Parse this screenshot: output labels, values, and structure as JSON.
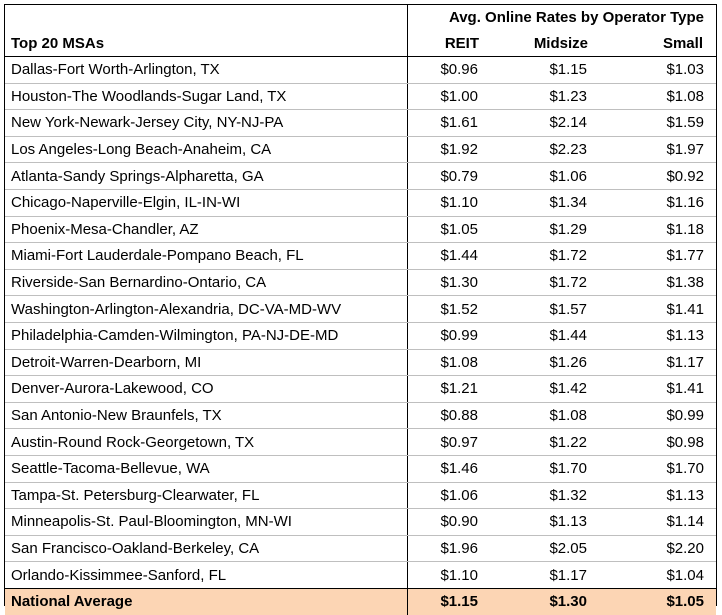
{
  "table": {
    "group_header": "Avg. Online Rates by Operator Type",
    "columns": {
      "name": "Top 20 MSAs",
      "reit": "REIT",
      "midsize": "Midsize",
      "small": "Small"
    },
    "rows": [
      {
        "msa": "Dallas-Fort Worth-Arlington, TX",
        "reit": "$0.96",
        "midsize": "$1.15",
        "small": "$1.03"
      },
      {
        "msa": "Houston-The Woodlands-Sugar Land, TX",
        "reit": "$1.00",
        "midsize": "$1.23",
        "small": "$1.08"
      },
      {
        "msa": "New York-Newark-Jersey City, NY-NJ-PA",
        "reit": "$1.61",
        "midsize": "$2.14",
        "small": "$1.59"
      },
      {
        "msa": "Los Angeles-Long Beach-Anaheim, CA",
        "reit": "$1.92",
        "midsize": "$2.23",
        "small": "$1.97"
      },
      {
        "msa": "Atlanta-Sandy Springs-Alpharetta, GA",
        "reit": "$0.79",
        "midsize": "$1.06",
        "small": "$0.92"
      },
      {
        "msa": "Chicago-Naperville-Elgin, IL-IN-WI",
        "reit": "$1.10",
        "midsize": "$1.34",
        "small": "$1.16"
      },
      {
        "msa": "Phoenix-Mesa-Chandler, AZ",
        "reit": "$1.05",
        "midsize": "$1.29",
        "small": "$1.18"
      },
      {
        "msa": "Miami-Fort Lauderdale-Pompano Beach, FL",
        "reit": "$1.44",
        "midsize": "$1.72",
        "small": "$1.77"
      },
      {
        "msa": "Riverside-San Bernardino-Ontario, CA",
        "reit": "$1.30",
        "midsize": "$1.72",
        "small": "$1.38"
      },
      {
        "msa": "Washington-Arlington-Alexandria, DC-VA-MD-WV",
        "reit": "$1.52",
        "midsize": "$1.57",
        "small": "$1.41"
      },
      {
        "msa": "Philadelphia-Camden-Wilmington, PA-NJ-DE-MD",
        "reit": "$0.99",
        "midsize": "$1.44",
        "small": "$1.13"
      },
      {
        "msa": "Detroit-Warren-Dearborn, MI",
        "reit": "$1.08",
        "midsize": "$1.26",
        "small": "$1.17"
      },
      {
        "msa": "Denver-Aurora-Lakewood, CO",
        "reit": "$1.21",
        "midsize": "$1.42",
        "small": "$1.41"
      },
      {
        "msa": "San Antonio-New Braunfels, TX",
        "reit": "$0.88",
        "midsize": "$1.08",
        "small": "$0.99"
      },
      {
        "msa": "Austin-Round Rock-Georgetown, TX",
        "reit": "$0.97",
        "midsize": "$1.22",
        "small": "$0.98"
      },
      {
        "msa": "Seattle-Tacoma-Bellevue, WA",
        "reit": "$1.46",
        "midsize": "$1.70",
        "small": "$1.70"
      },
      {
        "msa": "Tampa-St. Petersburg-Clearwater, FL",
        "reit": "$1.06",
        "midsize": "$1.32",
        "small": "$1.13"
      },
      {
        "msa": "Minneapolis-St. Paul-Bloomington, MN-WI",
        "reit": "$0.90",
        "midsize": "$1.13",
        "small": "$1.14"
      },
      {
        "msa": "San Francisco-Oakland-Berkeley, CA",
        "reit": "$1.96",
        "midsize": "$2.05",
        "small": "$2.20"
      },
      {
        "msa": "Orlando-Kissimmee-Sanford, FL",
        "reit": "$1.10",
        "midsize": "$1.17",
        "small": "$1.04"
      }
    ],
    "total": {
      "label": "National Average",
      "reit": "$1.15",
      "midsize": "$1.30",
      "small": "$1.05"
    },
    "colors": {
      "total_fill": "#fcd5b4",
      "row_divider": "#bfbfbf",
      "border": "#000000"
    }
  }
}
